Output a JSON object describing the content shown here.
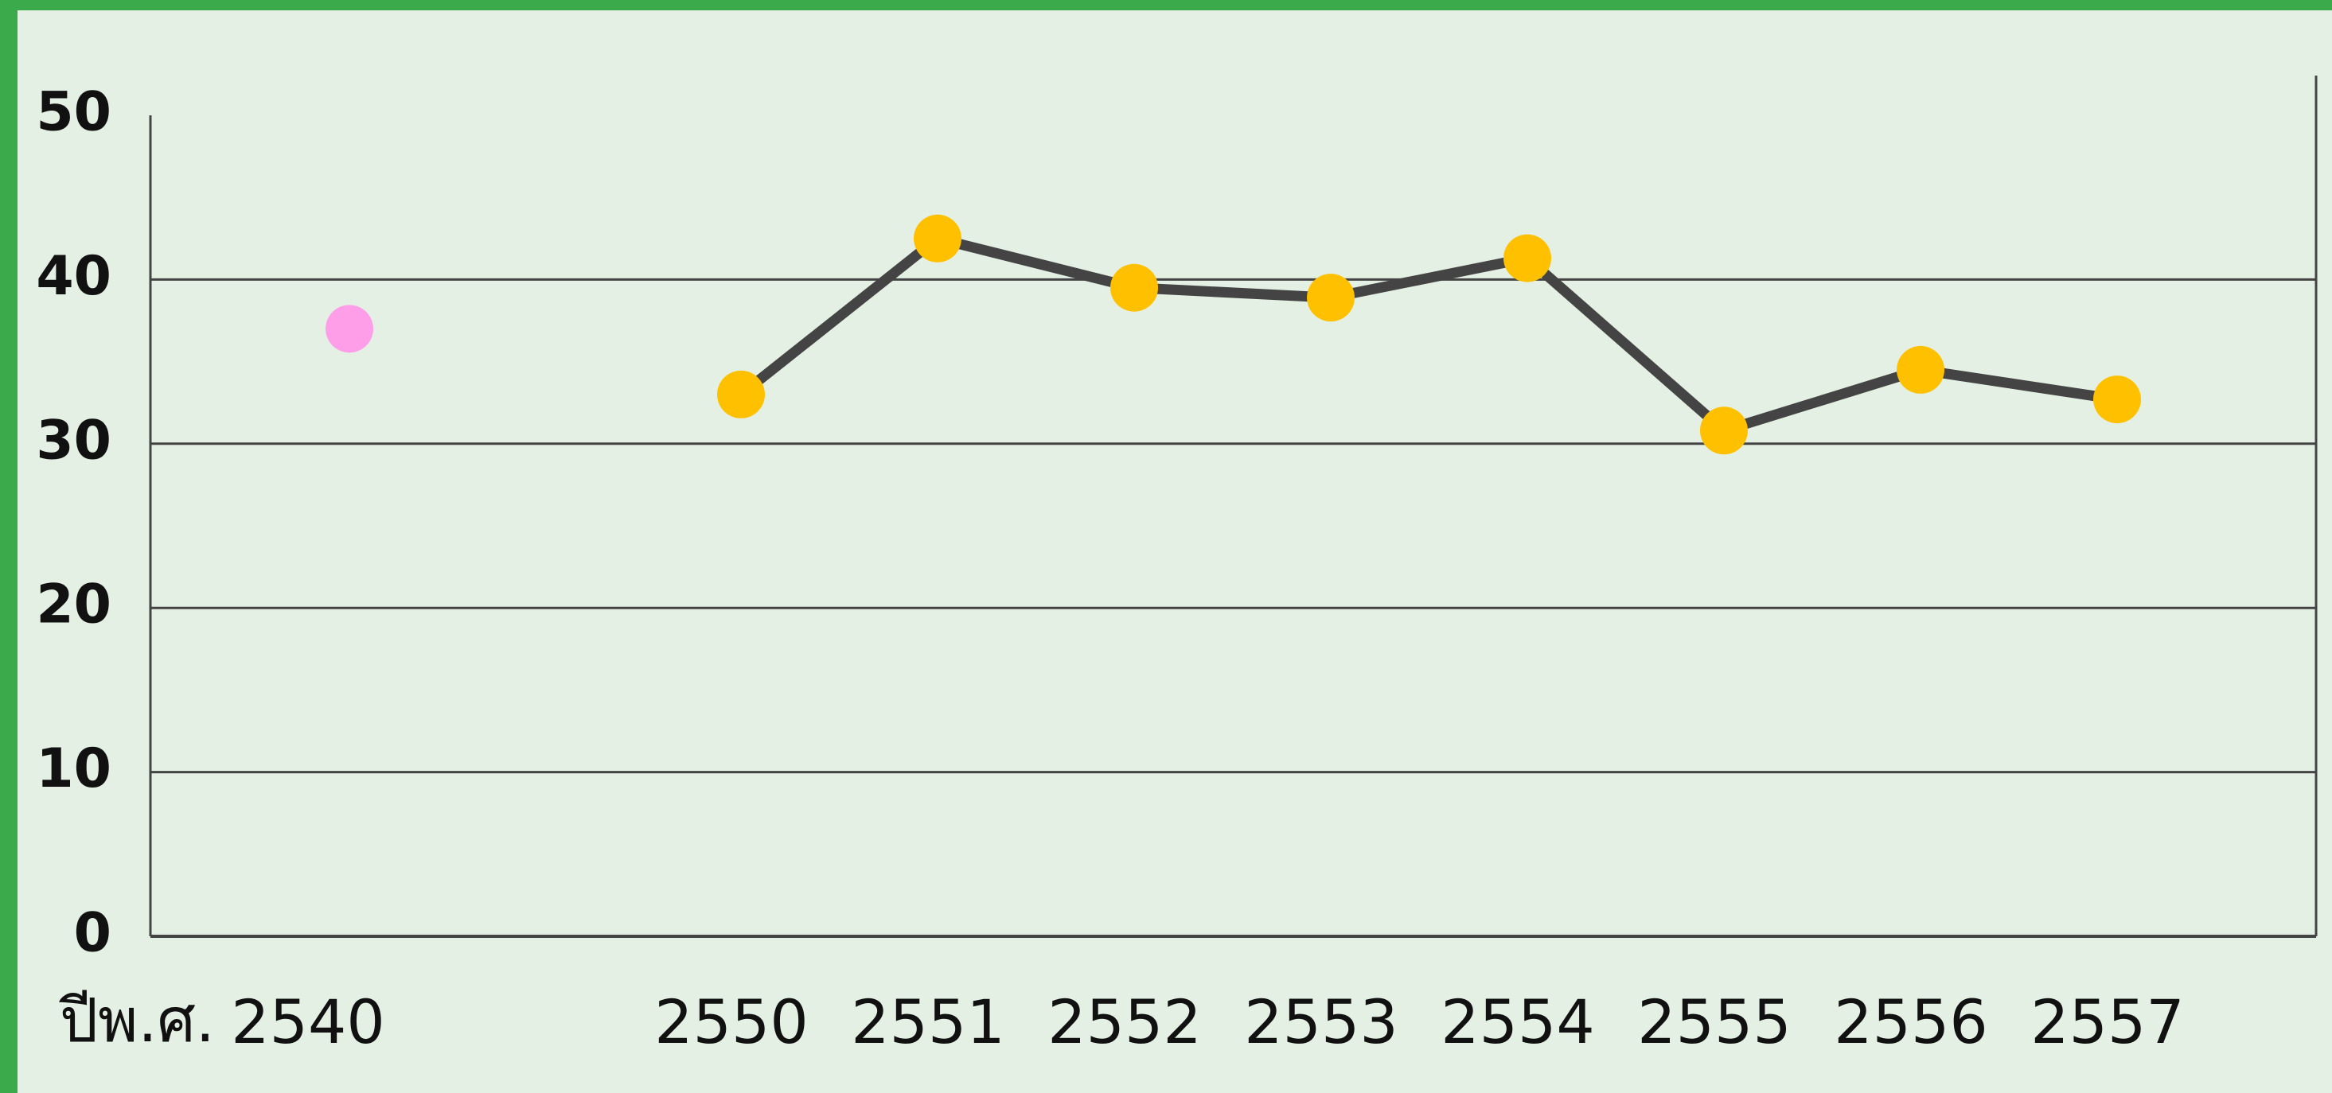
{
  "chart_data": {
    "type": "line",
    "x_label": "ปีพ.ศ.",
    "categories": [
      "2540",
      "2550",
      "2551",
      "2552",
      "2553",
      "2554",
      "2555",
      "2556",
      "2557"
    ],
    "series": [
      {
        "color": "#ff9ee8",
        "values": [
          37,
          null,
          null,
          null,
          null,
          null,
          null,
          null,
          null
        ],
        "line": false
      },
      {
        "color": "#ffc000",
        "line_color": "#444444",
        "values": [
          null,
          33,
          42.5,
          39.5,
          38.9,
          41.3,
          30.8,
          34.5,
          32.7
        ],
        "line": true
      }
    ],
    "ylim": [
      0,
      50
    ],
    "yticks": [
      0,
      10,
      20,
      30,
      40,
      50
    ],
    "grid": true
  }
}
